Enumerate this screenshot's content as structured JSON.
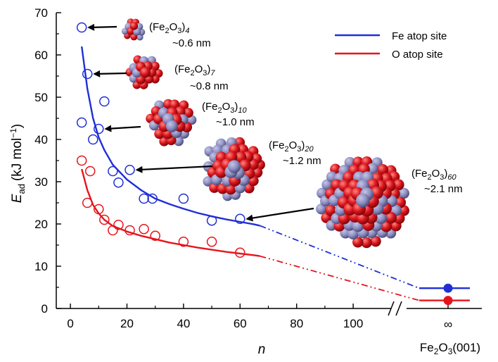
{
  "chart_data": {
    "type": "scatter",
    "xlabel": "n",
    "ylabel": "E",
    "ylabel_sub": "ad",
    "ylabel_unit": "(kJ mol",
    "ylabel_unit_sup": "−1",
    "ylabel_unit_end": ")",
    "xlim": [
      -5,
      115
    ],
    "ylim": [
      0,
      70
    ],
    "x_ticks": [
      0,
      20,
      40,
      60,
      80,
      100
    ],
    "y_ticks": [
      0,
      10,
      20,
      30,
      40,
      50,
      60,
      70
    ],
    "x_tick_labels": [
      "0",
      "20",
      "40",
      "60",
      "80",
      "100"
    ],
    "y_tick_labels": [
      "0",
      "10",
      "20",
      "30",
      "40",
      "50",
      "60",
      "70"
    ],
    "infinity_label": "∞",
    "surface_label": {
      "a": "Fe",
      "b": "2",
      "c": "O",
      "d": "3",
      "e": "(001)"
    },
    "legend_position": "top-right",
    "series": [
      {
        "name": "Fe atop site",
        "color": "#1f2fd6",
        "points": [
          [
            4,
            66.5
          ],
          [
            6,
            55.5
          ],
          [
            12,
            49
          ],
          [
            4,
            44
          ],
          [
            10,
            42.5
          ],
          [
            8,
            40
          ],
          [
            15,
            32.5
          ],
          [
            21,
            32.8
          ],
          [
            17,
            29.8
          ],
          [
            26,
            26
          ],
          [
            29,
            26
          ],
          [
            40,
            26
          ],
          [
            50,
            20.8
          ],
          [
            60,
            21.2
          ]
        ],
        "fit_x": [
          4,
          6,
          8,
          10,
          12,
          15,
          20,
          25,
          30,
          35,
          40,
          45,
          50,
          55,
          60,
          65,
          67
        ],
        "fit_y": [
          62,
          52,
          45,
          40.5,
          37.5,
          34,
          30.5,
          28,
          26,
          24.7,
          23.6,
          22.6,
          21.8,
          21.1,
          20.5,
          19.9,
          19.6
        ],
        "extrapolation_end": 4.8,
        "bulk_value": 4.8
      },
      {
        "name": "O atop site",
        "color": "#e5141b",
        "points": [
          [
            4,
            35
          ],
          [
            7,
            32.5
          ],
          [
            6,
            25
          ],
          [
            10,
            23.5
          ],
          [
            12,
            21
          ],
          [
            15,
            18.5
          ],
          [
            17,
            19.8
          ],
          [
            21,
            18.5
          ],
          [
            26,
            18.8
          ],
          [
            30,
            17.2
          ],
          [
            40,
            15.8
          ],
          [
            50,
            15.8
          ],
          [
            60,
            13.2
          ]
        ],
        "fit_x": [
          4,
          6,
          8,
          10,
          12,
          15,
          20,
          25,
          30,
          35,
          40,
          45,
          50,
          55,
          60,
          65,
          67
        ],
        "fit_y": [
          33,
          28,
          24.5,
          22.5,
          21,
          19.5,
          18.2,
          17.2,
          16.4,
          15.6,
          15,
          14.4,
          13.9,
          13.4,
          13,
          12.6,
          12.4
        ],
        "extrapolation_end": 1.9,
        "bulk_value": 1.9
      }
    ],
    "annotations": [
      {
        "formula": "Fe",
        "sub1": "2",
        "mid": "O",
        "sub2": "3",
        "n": "4",
        "size": "~0.6 nm",
        "point": [
          4,
          66.5
        ]
      },
      {
        "formula": "Fe",
        "sub1": "2",
        "mid": "O",
        "sub2": "3",
        "n": "7",
        "size": "~0.8 nm",
        "point": [
          6,
          55.5
        ]
      },
      {
        "formula": "Fe",
        "sub1": "2",
        "mid": "O",
        "sub2": "3",
        "n": "10",
        "size": "~1.0 nm",
        "point": [
          10,
          42.5
        ]
      },
      {
        "formula": "Fe",
        "sub1": "2",
        "mid": "O",
        "sub2": "3",
        "n": "20",
        "size": "~1.2 nm",
        "point": [
          21,
          32.8
        ]
      },
      {
        "formula": "Fe",
        "sub1": "2",
        "mid": "O",
        "sub2": "3",
        "n": "60",
        "size": "~2.1 nm",
        "point": [
          60,
          21.2
        ]
      }
    ],
    "cluster_colors": {
      "fe": "#8e8fc2",
      "o": "#d8141c"
    }
  }
}
